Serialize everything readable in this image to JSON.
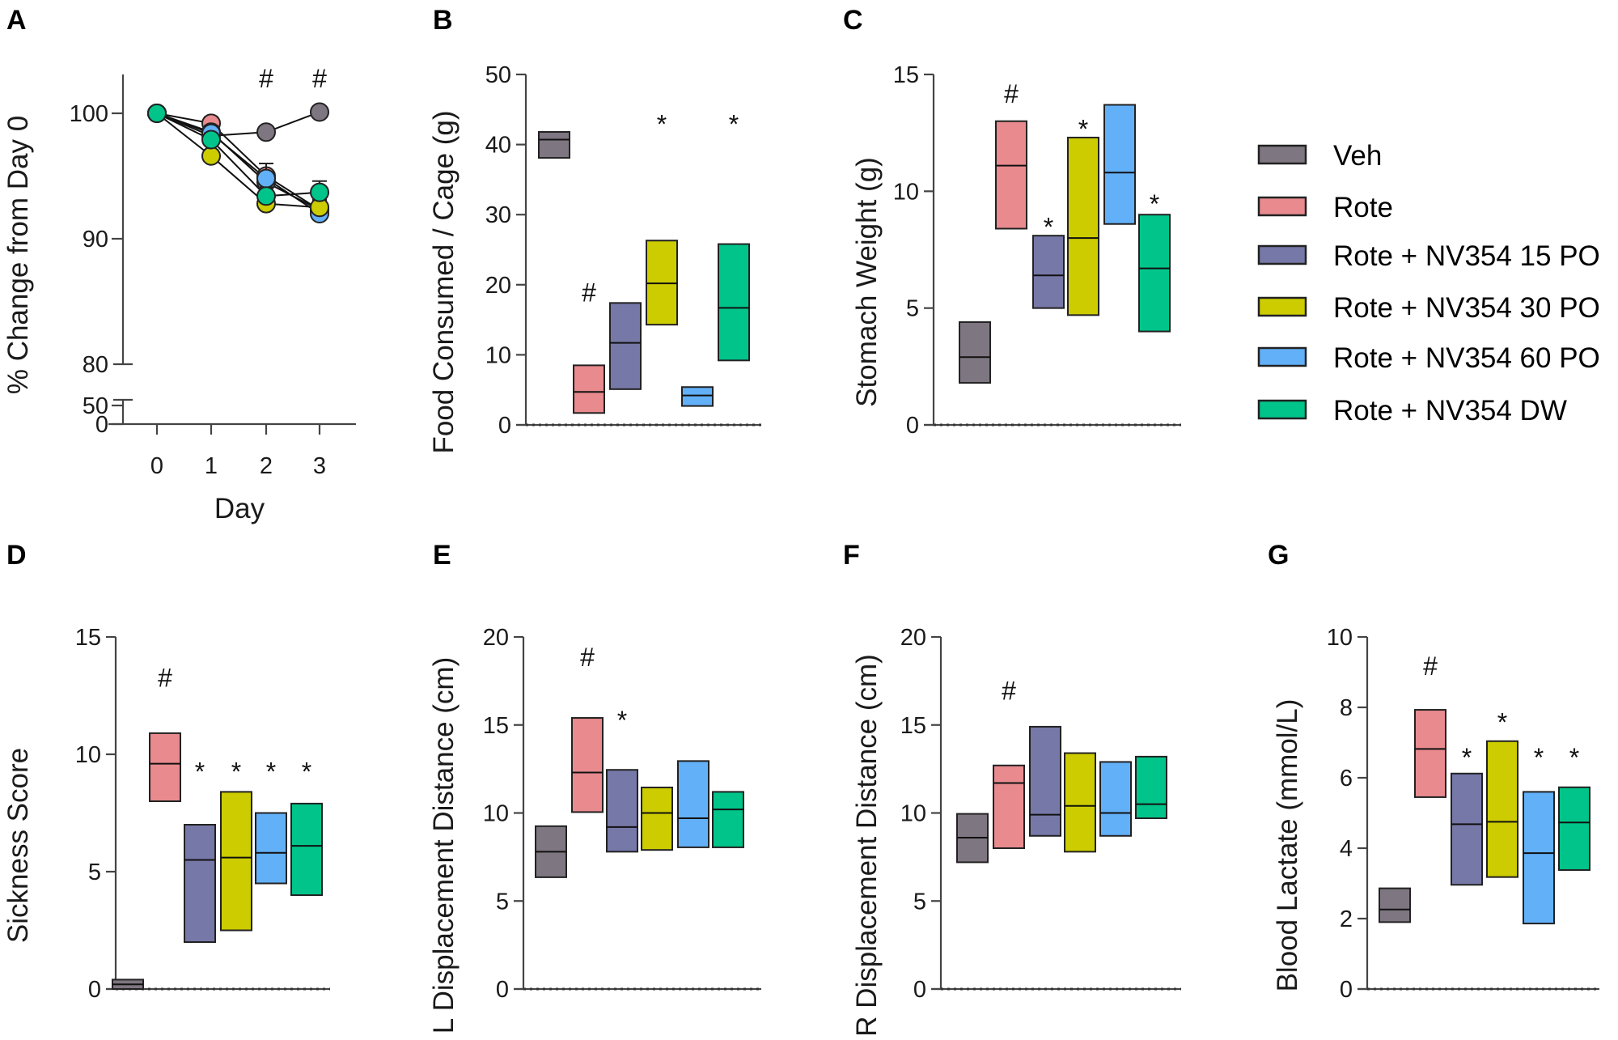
{
  "figure": {
    "panel_labels": [
      "A",
      "B",
      "C",
      "D",
      "E",
      "F",
      "G"
    ]
  },
  "legend": {
    "position": "right",
    "items": [
      {
        "key": "veh",
        "label": "Veh",
        "color": "#7e7680"
      },
      {
        "key": "rote",
        "label": "Rote",
        "color": "#e88a8e"
      },
      {
        "key": "nv15",
        "label": "Rote + NV354 15 PO",
        "color": "#7678a8"
      },
      {
        "key": "nv30",
        "label": "Rote + NV354 30 PO",
        "color": "#cccc00"
      },
      {
        "key": "nv60",
        "label": "Rote + NV354 60 PO",
        "color": "#62b0f8"
      },
      {
        "key": "dw",
        "label": "Rote + NV354 DW",
        "color": "#00c48a"
      }
    ]
  },
  "chart_data": [
    {
      "panel": "A",
      "type": "line",
      "xlabel": "Day",
      "ylabel": "% Change from Day 0",
      "x": [
        0,
        1,
        2,
        3
      ],
      "x_ticks": [
        "0",
        "1",
        "2",
        "3"
      ],
      "y_ticks": [
        "100",
        "90",
        "80",
        "50",
        "0"
      ],
      "ylim": [
        0,
        103
      ],
      "axis_break": [
        50,
        80
      ],
      "annotations": [
        {
          "x": 2,
          "text": "#"
        },
        {
          "x": 3,
          "text": "#"
        }
      ],
      "series": [
        {
          "key": "veh",
          "name": "Veh",
          "values": [
            100,
            98.2,
            98.5,
            100.1
          ],
          "error": [
            0,
            0.4,
            0.4,
            0.4
          ]
        },
        {
          "key": "rote",
          "name": "Rote",
          "values": [
            100,
            99.2,
            95.0,
            92.3
          ],
          "error": [
            0,
            0.5,
            1.0,
            0.8
          ]
        },
        {
          "key": "nv15",
          "name": "Rote + NV354 15 PO",
          "values": [
            100,
            98.5,
            94.5,
            92.3
          ],
          "error": [
            0,
            0.5,
            0.8,
            0.6
          ]
        },
        {
          "key": "nv30",
          "name": "Rote + NV354 30 PO",
          "values": [
            100,
            96.6,
            92.8,
            92.5
          ],
          "error": [
            0,
            0.5,
            0.5,
            0.5
          ]
        },
        {
          "key": "nv60",
          "name": "Rote + NV354 60 PO",
          "values": [
            100,
            98.4,
            94.8,
            92.0
          ],
          "error": [
            0,
            0.5,
            1.2,
            0.6
          ]
        },
        {
          "key": "dw",
          "name": "Rote + NV354 DW",
          "values": [
            100,
            97.9,
            93.4,
            93.7
          ],
          "error": [
            0,
            0.5,
            0.7,
            0.9
          ]
        }
      ]
    },
    {
      "panel": "B",
      "type": "bar",
      "subtype": "floating-bar-min-max-median",
      "ylabel": "Food Consumed / Cage (g)",
      "ylim": [
        0,
        50
      ],
      "y_ticks": [
        "0",
        "10",
        "20",
        "30",
        "40",
        "50"
      ],
      "categories": [
        "Veh",
        "Rote",
        "Rote + NV354 15 PO",
        "Rote + NV354 30 PO",
        "Rote + NV354 60 PO",
        "Rote + NV354 DW"
      ],
      "series": [
        {
          "key": "veh",
          "min": 38.1,
          "max": 41.8,
          "median": 40.7,
          "mark": ""
        },
        {
          "key": "rote",
          "min": 1.7,
          "max": 8.5,
          "median": 4.7,
          "mark": "#"
        },
        {
          "key": "nv15",
          "min": 5.1,
          "max": 17.4,
          "median": 11.7,
          "mark": ""
        },
        {
          "key": "nv30",
          "min": 14.3,
          "max": 26.3,
          "median": 20.2,
          "mark": "*"
        },
        {
          "key": "nv60",
          "min": 2.7,
          "max": 5.4,
          "median": 4.2,
          "mark": ""
        },
        {
          "key": "dw",
          "min": 9.2,
          "max": 25.8,
          "median": 16.7,
          "mark": "*"
        }
      ],
      "mark_levels": {
        "rote": 19,
        "nv30": 43,
        "dw": 43
      }
    },
    {
      "panel": "C",
      "type": "bar",
      "subtype": "floating-bar-min-max-median",
      "ylabel": "Stomach Weight (g)",
      "ylim": [
        0,
        15
      ],
      "y_ticks": [
        "0",
        "5",
        "10",
        "15"
      ],
      "categories": [
        "Veh",
        "Rote",
        "Rote + NV354 15 PO",
        "Rote + NV354 30 PO",
        "Rote + NV354 60 PO",
        "Rote + NV354 DW"
      ],
      "series": [
        {
          "key": "veh",
          "min": 1.8,
          "max": 4.4,
          "median": 2.9,
          "mark": ""
        },
        {
          "key": "rote",
          "min": 8.4,
          "max": 13.0,
          "median": 11.1,
          "mark": "#"
        },
        {
          "key": "nv15",
          "min": 5.0,
          "max": 8.1,
          "median": 6.4,
          "mark": "*"
        },
        {
          "key": "nv30",
          "min": 4.7,
          "max": 12.3,
          "median": 8.0,
          "mark": "*"
        },
        {
          "key": "nv60",
          "min": 8.6,
          "max": 13.7,
          "median": 10.8,
          "mark": ""
        },
        {
          "key": "dw",
          "min": 4.0,
          "max": 9.0,
          "median": 6.7,
          "mark": "*"
        }
      ],
      "mark_levels": {
        "rote": 14.2,
        "nv15": 8.5,
        "nv30": 12.7,
        "dw": 9.5
      }
    },
    {
      "panel": "D",
      "type": "bar",
      "subtype": "floating-bar-min-max-median",
      "ylabel": "Sickness Score",
      "ylim": [
        0,
        15
      ],
      "y_ticks": [
        "0",
        "5",
        "10",
        "15"
      ],
      "categories": [
        "Veh",
        "Rote",
        "Rote + NV354 15 PO",
        "Rote + NV354 30 PO",
        "Rote + NV354 60 PO",
        "Rote + NV354 DW"
      ],
      "series": [
        {
          "key": "veh",
          "min": 0,
          "max": 0.4,
          "median": 0.2,
          "mark": ""
        },
        {
          "key": "rote",
          "min": 8.0,
          "max": 10.9,
          "median": 9.6,
          "mark": "#"
        },
        {
          "key": "nv15",
          "min": 2.0,
          "max": 7.0,
          "median": 5.5,
          "mark": "*"
        },
        {
          "key": "nv30",
          "min": 2.5,
          "max": 8.4,
          "median": 5.6,
          "mark": "*"
        },
        {
          "key": "nv60",
          "min": 4.5,
          "max": 7.5,
          "median": 5.8,
          "mark": "*"
        },
        {
          "key": "dw",
          "min": 4.0,
          "max": 7.9,
          "median": 6.1,
          "mark": "*"
        }
      ],
      "mark_levels": {
        "rote": 13.3,
        "nv15": 9.3,
        "nv30": 9.3,
        "nv60": 9.3,
        "dw": 9.3
      }
    },
    {
      "panel": "E",
      "type": "bar",
      "subtype": "floating-bar-min-max-median",
      "ylabel": "L Displacement Distance (cm)",
      "ylim": [
        0,
        20
      ],
      "y_ticks": [
        "0",
        "5",
        "10",
        "15",
        "20"
      ],
      "categories": [
        "Veh",
        "Rote",
        "Rote + NV354 15 PO",
        "Rote + NV354 30 PO",
        "Rote + NV354 60 PO",
        "Rote + NV354 DW"
      ],
      "series": [
        {
          "key": "veh",
          "min": 6.35,
          "max": 9.25,
          "median": 7.8,
          "mark": ""
        },
        {
          "key": "rote",
          "min": 10.05,
          "max": 15.4,
          "median": 12.3,
          "mark": "#"
        },
        {
          "key": "nv15",
          "min": 7.8,
          "max": 12.45,
          "median": 9.2,
          "mark": "*"
        },
        {
          "key": "nv30",
          "min": 7.9,
          "max": 11.45,
          "median": 10.0,
          "mark": ""
        },
        {
          "key": "nv60",
          "min": 8.05,
          "max": 12.95,
          "median": 9.7,
          "mark": ""
        },
        {
          "key": "dw",
          "min": 8.05,
          "max": 11.2,
          "median": 10.2,
          "mark": ""
        }
      ],
      "mark_levels": {
        "rote": 18.9,
        "nv15": 15.3
      }
    },
    {
      "panel": "F",
      "type": "bar",
      "subtype": "floating-bar-min-max-median",
      "ylabel": "R Displacement Distance (cm)",
      "ylim": [
        0,
        20
      ],
      "y_ticks": [
        "0",
        "5",
        "10",
        "15",
        "20"
      ],
      "categories": [
        "Veh",
        "Rote",
        "Rote + NV354 15 PO",
        "Rote + NV354 30 PO",
        "Rote + NV354 60 PO",
        "Rote + NV354 DW"
      ],
      "series": [
        {
          "key": "veh",
          "min": 7.2,
          "max": 9.95,
          "median": 8.6,
          "mark": ""
        },
        {
          "key": "rote",
          "min": 8.0,
          "max": 12.7,
          "median": 11.7,
          "mark": "#"
        },
        {
          "key": "nv15",
          "min": 8.7,
          "max": 14.9,
          "median": 9.9,
          "mark": ""
        },
        {
          "key": "nv30",
          "min": 7.8,
          "max": 13.4,
          "median": 10.4,
          "mark": ""
        },
        {
          "key": "nv60",
          "min": 8.7,
          "max": 12.9,
          "median": 10.0,
          "mark": ""
        },
        {
          "key": "dw",
          "min": 9.7,
          "max": 13.2,
          "median": 10.5,
          "mark": ""
        }
      ],
      "mark_levels": {
        "rote": 17.0
      }
    },
    {
      "panel": "G",
      "type": "bar",
      "subtype": "floating-bar-min-max-median",
      "ylabel": "Blood Lactate (mmol/L)",
      "ylim": [
        0,
        10
      ],
      "y_ticks": [
        "0",
        "2",
        "4",
        "6",
        "8",
        "10"
      ],
      "categories": [
        "Veh",
        "Rote",
        "Rote + NV354 15 PO",
        "Rote + NV354 30 PO",
        "Rote + NV354 60 PO",
        "Rote + NV354 DW"
      ],
      "series": [
        {
          "key": "veh",
          "min": 1.9,
          "max": 2.86,
          "median": 2.26,
          "mark": ""
        },
        {
          "key": "rote",
          "min": 5.45,
          "max": 7.93,
          "median": 6.82,
          "mark": "#"
        },
        {
          "key": "nv15",
          "min": 2.96,
          "max": 6.12,
          "median": 4.68,
          "mark": "*"
        },
        {
          "key": "nv30",
          "min": 3.18,
          "max": 7.04,
          "median": 4.75,
          "mark": "*"
        },
        {
          "key": "nv60",
          "min": 1.86,
          "max": 5.6,
          "median": 3.86,
          "mark": "*"
        },
        {
          "key": "dw",
          "min": 3.38,
          "max": 5.73,
          "median": 4.73,
          "mark": "*"
        }
      ],
      "mark_levels": {
        "rote": 9.2,
        "nv15": 6.6,
        "nv30": 7.6,
        "nv60": 6.6,
        "dw": 6.6
      }
    }
  ]
}
